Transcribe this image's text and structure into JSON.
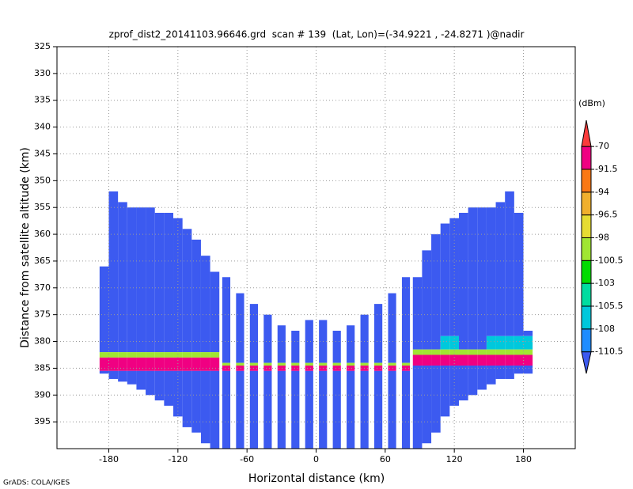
{
  "chart_data": {
    "type": "heatmap",
    "title": "zprof_dist2_20141103.96646.grd  scan # 139  (Lat, Lon)=(-34.9221 , -24.8271 )@nadir",
    "x_label": "Horizontal distance (km)",
    "y_label": "Distance from satellite altitude (km)",
    "colorbar_label": "(dBm)",
    "footer": "GrADS: COLA/IGES",
    "xlim": [
      -225,
      225
    ],
    "xticks": [
      -180,
      -120,
      -60,
      0,
      60,
      120,
      180
    ],
    "ylim": [
      325,
      400
    ],
    "y_inverted": true,
    "yticks": [
      325,
      330,
      335,
      340,
      345,
      350,
      355,
      360,
      365,
      370,
      375,
      380,
      385,
      390,
      395
    ],
    "grid": true,
    "levels": [
      -110.5,
      -108,
      -105.5,
      -103,
      -100.5,
      -98,
      -96.5,
      -94,
      -91.5,
      -70
    ],
    "colors": [
      "#3c5af0",
      "#1e8cff",
      "#00c8dc",
      "#00dca0",
      "#00dc00",
      "#a0e632",
      "#e6dc32",
      "#f0af2d",
      "#fa7814",
      "#f00082",
      "#fa3c3c"
    ],
    "columns": [
      {
        "x0": -188,
        "x1": -180,
        "segments": [
          [
            366,
            382,
            -115
          ],
          [
            382,
            383,
            -99
          ],
          [
            383,
            385.5,
            -80
          ],
          [
            385.5,
            386,
            -115
          ]
        ]
      },
      {
        "x0": -180,
        "x1": -172,
        "segments": [
          [
            352,
            382,
            -115
          ],
          [
            382,
            383,
            -99
          ],
          [
            383,
            385.5,
            -80
          ],
          [
            385.5,
            387,
            -115
          ]
        ]
      },
      {
        "x0": -172,
        "x1": -164,
        "segments": [
          [
            354,
            382,
            -115
          ],
          [
            382,
            383,
            -99
          ],
          [
            383,
            385.5,
            -80
          ],
          [
            385.5,
            387.5,
            -115
          ]
        ]
      },
      {
        "x0": -164,
        "x1": -156,
        "segments": [
          [
            355,
            382,
            -115
          ],
          [
            382,
            383,
            -99
          ],
          [
            383,
            385.5,
            -80
          ],
          [
            385.5,
            388,
            -115
          ]
        ]
      },
      {
        "x0": -156,
        "x1": -148,
        "segments": [
          [
            355,
            382,
            -115
          ],
          [
            382,
            383,
            -99
          ],
          [
            383,
            385.5,
            -80
          ],
          [
            385.5,
            389,
            -115
          ]
        ]
      },
      {
        "x0": -148,
        "x1": -140,
        "segments": [
          [
            355,
            382,
            -115
          ],
          [
            382,
            383,
            -99
          ],
          [
            383,
            385.5,
            -80
          ],
          [
            385.5,
            390,
            -115
          ]
        ]
      },
      {
        "x0": -140,
        "x1": -132,
        "segments": [
          [
            356,
            382,
            -115
          ],
          [
            382,
            383,
            -99
          ],
          [
            383,
            385.5,
            -80
          ],
          [
            385.5,
            391,
            -115
          ]
        ]
      },
      {
        "x0": -132,
        "x1": -124,
        "segments": [
          [
            356,
            382,
            -115
          ],
          [
            382,
            383,
            -99
          ],
          [
            383,
            385.5,
            -80
          ],
          [
            385.5,
            392,
            -115
          ]
        ]
      },
      {
        "x0": -124,
        "x1": -116,
        "segments": [
          [
            357,
            382,
            -115
          ],
          [
            382,
            383,
            -99
          ],
          [
            383,
            385.5,
            -80
          ],
          [
            385.5,
            394,
            -115
          ]
        ]
      },
      {
        "x0": -116,
        "x1": -108,
        "segments": [
          [
            359,
            382,
            -115
          ],
          [
            382,
            383,
            -99
          ],
          [
            383,
            385.5,
            -80
          ],
          [
            385.5,
            396,
            -115
          ]
        ]
      },
      {
        "x0": -108,
        "x1": -100,
        "segments": [
          [
            361,
            382,
            -115
          ],
          [
            382,
            383,
            -99
          ],
          [
            383,
            385.5,
            -80
          ],
          [
            385.5,
            397,
            -115
          ]
        ]
      },
      {
        "x0": -100,
        "x1": -92,
        "segments": [
          [
            364,
            382,
            -115
          ],
          [
            382,
            383,
            -99
          ],
          [
            383,
            385.5,
            -80
          ],
          [
            385.5,
            399,
            -115
          ]
        ]
      },
      {
        "x0": -92,
        "x1": -84,
        "segments": [
          [
            367,
            382,
            -115
          ],
          [
            382,
            383,
            -99
          ],
          [
            383,
            385.5,
            -80
          ],
          [
            385.5,
            400,
            -115
          ]
        ]
      },
      {
        "x0": -81.5,
        "x1": -74.5,
        "segments": [
          [
            368,
            384,
            -115
          ],
          [
            384,
            384.5,
            -99
          ],
          [
            384.5,
            385.5,
            -80
          ],
          [
            385.5,
            400,
            -115
          ]
        ]
      },
      {
        "x0": -69.5,
        "x1": -62.5,
        "segments": [
          [
            371,
            384,
            -115
          ],
          [
            384,
            384.5,
            -99
          ],
          [
            384.5,
            385.5,
            -80
          ],
          [
            385.5,
            400,
            -115
          ]
        ]
      },
      {
        "x0": -57.5,
        "x1": -50.5,
        "segments": [
          [
            373,
            384,
            -115
          ],
          [
            384,
            384.5,
            -99
          ],
          [
            384.5,
            385.5,
            -80
          ],
          [
            385.5,
            400,
            -115
          ]
        ]
      },
      {
        "x0": -45.5,
        "x1": -38.5,
        "segments": [
          [
            375,
            384,
            -115
          ],
          [
            384,
            384.5,
            -99
          ],
          [
            384.5,
            385.5,
            -80
          ],
          [
            385.5,
            400,
            -115
          ]
        ]
      },
      {
        "x0": -33.5,
        "x1": -26.5,
        "segments": [
          [
            377,
            384,
            -115
          ],
          [
            384,
            384.5,
            -99
          ],
          [
            384.5,
            385.5,
            -80
          ],
          [
            385.5,
            400,
            -115
          ]
        ]
      },
      {
        "x0": -21.5,
        "x1": -14.5,
        "segments": [
          [
            378,
            384,
            -115
          ],
          [
            384,
            384.5,
            -99
          ],
          [
            384.5,
            385.5,
            -80
          ],
          [
            385.5,
            400,
            -115
          ]
        ]
      },
      {
        "x0": -9.5,
        "x1": -2.5,
        "segments": [
          [
            376,
            384,
            -115
          ],
          [
            384,
            384.5,
            -99
          ],
          [
            384.5,
            385.5,
            -80
          ],
          [
            385.5,
            400,
            -115
          ]
        ]
      },
      {
        "x0": 2.5,
        "x1": 9.5,
        "segments": [
          [
            376,
            384,
            -115
          ],
          [
            384,
            384.5,
            -99
          ],
          [
            384.5,
            385.5,
            -80
          ],
          [
            385.5,
            400,
            -115
          ]
        ]
      },
      {
        "x0": 14.5,
        "x1": 21.5,
        "segments": [
          [
            378,
            384,
            -115
          ],
          [
            384,
            384.5,
            -99
          ],
          [
            384.5,
            385.5,
            -80
          ],
          [
            385.5,
            400,
            -115
          ]
        ]
      },
      {
        "x0": 26.5,
        "x1": 33.5,
        "segments": [
          [
            377,
            384,
            -115
          ],
          [
            384,
            384.5,
            -99
          ],
          [
            384.5,
            385.5,
            -80
          ],
          [
            385.5,
            400,
            -115
          ]
        ]
      },
      {
        "x0": 38.5,
        "x1": 45.5,
        "segments": [
          [
            375,
            384,
            -115
          ],
          [
            384,
            384.5,
            -99
          ],
          [
            384.5,
            385.5,
            -80
          ],
          [
            385.5,
            400,
            -115
          ]
        ]
      },
      {
        "x0": 50.5,
        "x1": 57.5,
        "segments": [
          [
            373,
            384,
            -115
          ],
          [
            384,
            384.5,
            -99
          ],
          [
            384.5,
            385.5,
            -80
          ],
          [
            385.5,
            400,
            -115
          ]
        ]
      },
      {
        "x0": 62.5,
        "x1": 69.5,
        "segments": [
          [
            371,
            384,
            -115
          ],
          [
            384,
            384.5,
            -99
          ],
          [
            384.5,
            385.5,
            -80
          ],
          [
            385.5,
            400,
            -115
          ]
        ]
      },
      {
        "x0": 74.5,
        "x1": 81.5,
        "segments": [
          [
            368,
            384,
            -115
          ],
          [
            384,
            384.5,
            -99
          ],
          [
            384.5,
            385.5,
            -80
          ],
          [
            385.5,
            400,
            -115
          ]
        ]
      },
      {
        "x0": 84,
        "x1": 92,
        "segments": [
          [
            368,
            381.5,
            -115
          ],
          [
            381.5,
            382.5,
            -99
          ],
          [
            382.5,
            384.5,
            -80
          ],
          [
            384.5,
            400,
            -115
          ]
        ]
      },
      {
        "x0": 92,
        "x1": 100,
        "segments": [
          [
            363,
            381.5,
            -115
          ],
          [
            381.5,
            382.5,
            -99
          ],
          [
            382.5,
            384.5,
            -80
          ],
          [
            384.5,
            399,
            -115
          ]
        ]
      },
      {
        "x0": 100,
        "x1": 108,
        "segments": [
          [
            360,
            381.5,
            -115
          ],
          [
            381.5,
            382.5,
            -99
          ],
          [
            382.5,
            384.5,
            -80
          ],
          [
            384.5,
            397,
            -115
          ]
        ]
      },
      {
        "x0": 108,
        "x1": 116,
        "segments": [
          [
            358,
            379,
            -115
          ],
          [
            379,
            381.5,
            -107
          ],
          [
            381.5,
            382.5,
            -99
          ],
          [
            382.5,
            384.5,
            -80
          ],
          [
            384.5,
            394,
            -115
          ]
        ]
      },
      {
        "x0": 116,
        "x1": 124,
        "segments": [
          [
            357,
            379,
            -115
          ],
          [
            379,
            381.5,
            -107
          ],
          [
            381.5,
            382.5,
            -99
          ],
          [
            382.5,
            384.5,
            -80
          ],
          [
            384.5,
            392,
            -115
          ]
        ]
      },
      {
        "x0": 124,
        "x1": 132,
        "segments": [
          [
            356,
            381.5,
            -115
          ],
          [
            381.5,
            382.5,
            -99
          ],
          [
            382.5,
            384.5,
            -80
          ],
          [
            384.5,
            391,
            -115
          ]
        ]
      },
      {
        "x0": 132,
        "x1": 140,
        "segments": [
          [
            355,
            381.5,
            -115
          ],
          [
            381.5,
            382.5,
            -99
          ],
          [
            382.5,
            384.5,
            -80
          ],
          [
            384.5,
            390,
            -115
          ]
        ]
      },
      {
        "x0": 140,
        "x1": 148,
        "segments": [
          [
            355,
            381.5,
            -115
          ],
          [
            381.5,
            382.5,
            -99
          ],
          [
            382.5,
            384.5,
            -80
          ],
          [
            384.5,
            389,
            -115
          ]
        ]
      },
      {
        "x0": 148,
        "x1": 156,
        "segments": [
          [
            355,
            379,
            -115
          ],
          [
            379,
            381.5,
            -107
          ],
          [
            381.5,
            382.5,
            -99
          ],
          [
            382.5,
            384.5,
            -80
          ],
          [
            384.5,
            388,
            -115
          ]
        ]
      },
      {
        "x0": 156,
        "x1": 164,
        "segments": [
          [
            354,
            379,
            -115
          ],
          [
            379,
            381.5,
            -107
          ],
          [
            381.5,
            382.5,
            -99
          ],
          [
            382.5,
            384.5,
            -80
          ],
          [
            384.5,
            387,
            -115
          ]
        ]
      },
      {
        "x0": 164,
        "x1": 172,
        "segments": [
          [
            352,
            379,
            -115
          ],
          [
            379,
            381.5,
            -107
          ],
          [
            381.5,
            382.5,
            -99
          ],
          [
            382.5,
            384.5,
            -80
          ],
          [
            384.5,
            387,
            -115
          ]
        ]
      },
      {
        "x0": 172,
        "x1": 180,
        "segments": [
          [
            356,
            379,
            -115
          ],
          [
            379,
            381.5,
            -107
          ],
          [
            381.5,
            382.5,
            -99
          ],
          [
            382.5,
            384.5,
            -80
          ],
          [
            384.5,
            386,
            -115
          ]
        ]
      },
      {
        "x0": 180,
        "x1": 188,
        "segments": [
          [
            378,
            379,
            -115
          ],
          [
            379,
            381.5,
            -107
          ],
          [
            381.5,
            382.5,
            -99
          ],
          [
            382.5,
            384.5,
            -80
          ],
          [
            384.5,
            386,
            -115
          ]
        ]
      }
    ]
  }
}
